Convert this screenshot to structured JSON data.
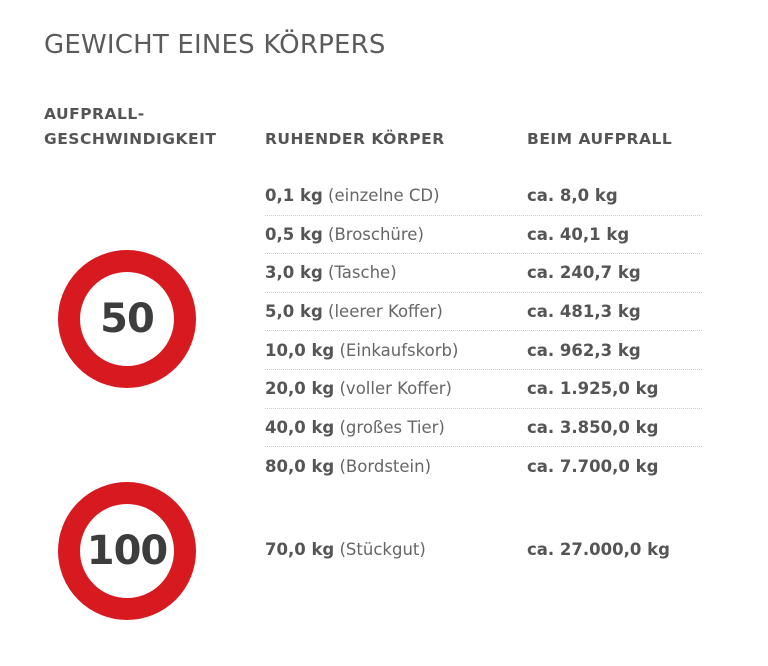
{
  "title": "GEWICHT EINES KÖRPERS",
  "columns": {
    "speed_line1": "AUFPRALL-",
    "speed_line2": "GESCHWINDIGKEIT",
    "rest": "RUHENDER KÖRPER",
    "impact": "BEIM AUFPRALL"
  },
  "colors": {
    "sign_ring": "#d71920",
    "sign_number": "#3d3d3d",
    "text": "#555555",
    "divider": "#cfcfcf"
  },
  "groups": [
    {
      "speed": "50",
      "rows": [
        {
          "mass": "0,1 kg",
          "object": "(einzelne CD)",
          "impact": "ca. 8,0 kg"
        },
        {
          "mass": "0,5 kg",
          "object": "(Broschüre)",
          "impact": "ca. 40,1 kg"
        },
        {
          "mass": "3,0 kg",
          "object": "(Tasche)",
          "impact": "ca. 240,7 kg"
        },
        {
          "mass": "5,0 kg",
          "object": "(leerer Koffer)",
          "impact": "ca. 481,3 kg"
        },
        {
          "mass": "10,0 kg",
          "object": "(Einkaufskorb)",
          "impact": "ca. 962,3 kg"
        },
        {
          "mass": "20,0 kg",
          "object": "(voller Koffer)",
          "impact": "ca. 1.925,0 kg"
        },
        {
          "mass": "40,0 kg",
          "object": "(großes Tier)",
          "impact": "ca. 3.850,0 kg"
        },
        {
          "mass": "80,0 kg",
          "object": "(Bordstein)",
          "impact": "ca. 7.700,0 kg"
        }
      ]
    },
    {
      "speed": "100",
      "rows": [
        {
          "mass": "70,0 kg",
          "object": "(Stückgut)",
          "impact": "ca. 27.000,0 kg"
        }
      ]
    }
  ]
}
